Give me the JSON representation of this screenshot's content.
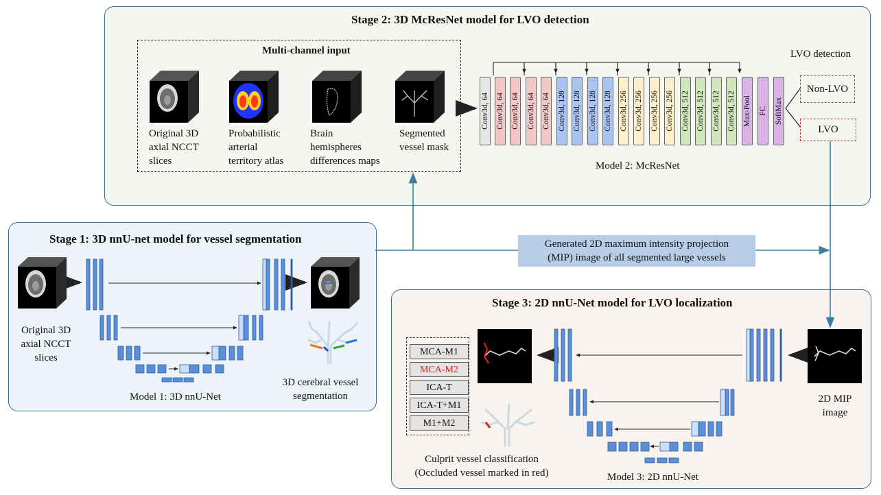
{
  "stage2": {
    "title": "Stage 2: 3D McResNet model for LVO  detection",
    "input_box_title": "Multi-channel input",
    "inputs": [
      {
        "label_lines": [
          "Original 3D",
          "axial  NCCT",
          "slices"
        ]
      },
      {
        "label_lines": [
          "Probabilistic",
          "arterial",
          "territory atlas"
        ]
      },
      {
        "label_lines": [
          "Brain",
          "hemispheres",
          "differences maps"
        ]
      },
      {
        "label_lines": [
          "Segmented",
          "vessel mask"
        ]
      }
    ],
    "layers": [
      {
        "label": "Conv3d, 64",
        "color": "#e6e6e6"
      },
      {
        "label": "Conv3d, 64",
        "color": "#f4c7c7"
      },
      {
        "label": "Conv3d, 64",
        "color": "#f4c7c7"
      },
      {
        "label": "Conv3d, 64",
        "color": "#f4c7c7"
      },
      {
        "label": "Conv3d, 64",
        "color": "#f4c7c7"
      },
      {
        "label": "Conv3d, 128",
        "color": "#a9c3f3"
      },
      {
        "label": "Conv3d, 128",
        "color": "#a9c3f3"
      },
      {
        "label": "Conv3d, 128",
        "color": "#a9c3f3"
      },
      {
        "label": "Conv3d, 128",
        "color": "#a9c3f3"
      },
      {
        "label": "Conv3d, 256",
        "color": "#fdefc9"
      },
      {
        "label": "Conv3d, 256",
        "color": "#fdefc9"
      },
      {
        "label": "Conv3d, 256",
        "color": "#fdefc9"
      },
      {
        "label": "Conv3d, 256",
        "color": "#fdefc9"
      },
      {
        "label": "Conv3d, 512",
        "color": "#cfe6bf"
      },
      {
        "label": "Conv3d, 512",
        "color": "#cfe6bf"
      },
      {
        "label": "Conv3d, 512",
        "color": "#cfe6bf"
      },
      {
        "label": "Conv3d, 512",
        "color": "#cfe6bf"
      },
      {
        "label": "Max-Pool",
        "color": "#d9b3e6"
      },
      {
        "label": "FC",
        "color": "#d9b3e6"
      },
      {
        "label": "SoftMax",
        "color": "#d9b3e6"
      }
    ],
    "model_label": "Model 2: McResNet",
    "detection_title": "LVO detection",
    "outputs": [
      "Non-LVO",
      "LVO"
    ]
  },
  "stage1": {
    "title": "Stage 1: 3D nnU-net model for vessel segmentation",
    "input_label_lines": [
      "Original 3D",
      "axial  NCCT",
      "slices"
    ],
    "model_label": "Model 1: 3D nnU-Net",
    "output_label_lines": [
      "3D cerebral vessel",
      "segmentation"
    ]
  },
  "mip": {
    "lines": [
      "Generated 2D maximum intensity projection",
      "(MIP) image of all segmented large vessels"
    ]
  },
  "stage3": {
    "title": "Stage 3: 2D nnU-Net model for LVO  localization",
    "classes": [
      {
        "label": "MCA-M1",
        "color": "#111111"
      },
      {
        "label": "MCA-M2",
        "color": "#e0211b"
      },
      {
        "label": "ICA-T",
        "color": "#111111"
      },
      {
        "label": "ICA-T+M1",
        "color": "#111111"
      },
      {
        "label": "M1+M2",
        "color": "#111111"
      }
    ],
    "classification_lines": [
      "Culprit vessel classification",
      "(Occluded vessel marked in red)"
    ],
    "model_label": "Model 3: 2D nnU-Net",
    "input_label_lines": [
      "2D MIP",
      "image"
    ]
  }
}
